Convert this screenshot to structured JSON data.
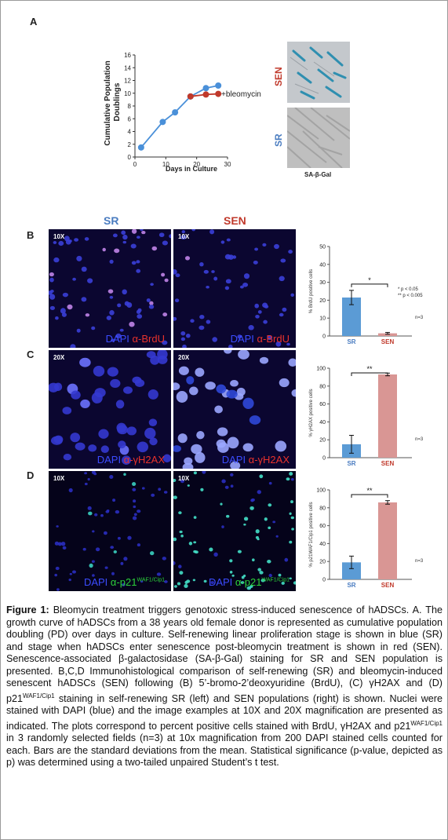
{
  "panels": {
    "A": "A",
    "B": "B",
    "C": "C",
    "D": "D"
  },
  "panelA": {
    "chart_data": {
      "type": "line",
      "xlabel": "Days in Culture",
      "ylabel": "Cumulative Population Doublings",
      "xlim": [
        0,
        30
      ],
      "ylim": [
        0,
        16
      ],
      "xticks": [
        0,
        10,
        20,
        30
      ],
      "yticks": [
        0,
        2,
        4,
        6,
        8,
        10,
        12,
        14,
        16
      ],
      "series": [
        {
          "name": "SR",
          "color": "#4a90d9",
          "x": [
            2,
            9,
            13,
            18,
            23,
            27
          ],
          "y": [
            1.5,
            5.5,
            7,
            9.5,
            10.8,
            11.2
          ]
        },
        {
          "name": "+bleomycin",
          "color": "#c0392b",
          "x": [
            18,
            23,
            27
          ],
          "y": [
            9.5,
            9.8,
            9.9
          ]
        }
      ],
      "annotation": "+bleomycin"
    },
    "sen_label": "SEN",
    "sr_label": "SR",
    "photo_caption": "SA-β-Gal"
  },
  "columns": {
    "sr": "SR",
    "sen": "SEN"
  },
  "micro": {
    "B": {
      "mag_left": "10X",
      "mag_right": "10X",
      "dapi": "DAPI",
      "stain": "α-BrdU"
    },
    "C": {
      "mag_left": "20X",
      "mag_right": "20X",
      "dapi": "DAPI",
      "stain": "α-γH2AX"
    },
    "D": {
      "mag_left": "10X",
      "mag_right": "10X",
      "dapi": "DAPI",
      "stain": "α-p21",
      "stain_sup": "WAF1/Cip1"
    }
  },
  "bars": {
    "chart_data": [
      {
        "type": "bar",
        "panel": "B",
        "categories": [
          "SR",
          "SEN"
        ],
        "values": [
          21.5,
          1.5
        ],
        "errors": [
          4,
          0.5
        ],
        "ylim": [
          0,
          50
        ],
        "yticks": [
          0,
          10,
          20,
          30,
          40,
          50
        ],
        "ylabel": "% BrdU positive cells",
        "sig": "*",
        "legend_1": "*  p < 0.05",
        "legend_2": "**  p < 0.005",
        "n": "n=3"
      },
      {
        "type": "bar",
        "panel": "C",
        "categories": [
          "SR",
          "SEN"
        ],
        "values": [
          15,
          93
        ],
        "errors": [
          10,
          1.5
        ],
        "ylim": [
          0,
          100
        ],
        "yticks": [
          0,
          20,
          40,
          60,
          80,
          100
        ],
        "ylabel": "% γH2AX positive cells",
        "sig": "**",
        "n": "n=3"
      },
      {
        "type": "bar",
        "panel": "D",
        "categories": [
          "SR",
          "SEN"
        ],
        "values": [
          19,
          86
        ],
        "errors": [
          7,
          2
        ],
        "ylim": [
          0,
          100
        ],
        "yticks": [
          0,
          20,
          40,
          60,
          80,
          100
        ],
        "ylabel": "% p21WAF1/Cip1 positive cells",
        "sig": "**",
        "n": "n=3"
      }
    ],
    "colors": {
      "sr": "#5b9bd5",
      "sen": "#d99694"
    }
  },
  "caption": {
    "label": "Figure 1:",
    "text_1": " Bleomycin treatment triggers genotoxic stress-induced senescence of hADSCs. A. The growth curve of hADSCs from a 38 years old female donor is represented as cumulative population doubling (PD) over days in culture. Self-renewing linear proliferation stage is shown in blue (SR) and stage when hADSCs enter senescence post-bleomycin treatment is shown in red (SEN). Senescence-associated β-galactosidase (SA-β-Gal) staining for SR and SEN population is presented. B,C,D Immunohistological comparison of self-renewing (SR) and bleomycin-induced senescent hADSCs (SEN) following (B) 5’-bromo-2’deoxyuridine (BrdU), (C) γH2AX and (D) p21",
    "sup_1": "WAF1/Cip1",
    "text_2": " staining in self-renewing SR (left) and SEN populations (right) is shown. Nuclei were stained with DAPI (blue) and the image examples at 10X and 20X magnification are presented as indicated. The plots correspond to percent positive cells stained with BrdU, γH2AX and p21",
    "sup_2": "WAF1/Cip1",
    "text_3": " in 3 randomly selected fields (n=3) at 10x magnification from 200 DAPI stained cells counted for each. Bars are the standard deviations from the mean. Statistical significance (p-value, depicted as p) was determined using a two-tailed unpaired Student’s t test."
  }
}
